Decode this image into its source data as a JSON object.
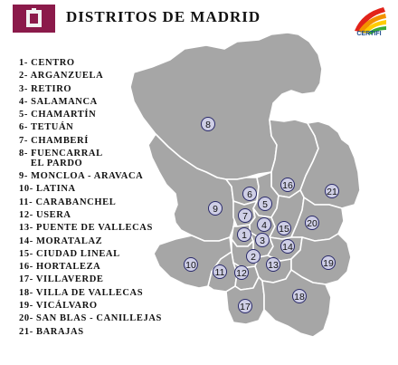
{
  "title": "DISTRITOS DE MADRID",
  "certifi_label": "CERTIFI",
  "legend": [
    "1- CENTRO",
    "2- ARGANZUELA",
    "3- RETIRO",
    "4- SALAMANCA",
    "5- CHAMARTÍN",
    "6- TETUÁN",
    "7- CHAMBERÍ",
    "8- FUENCARRAL\n    EL PARDO",
    "9- MONCLOA - ARAVACA",
    "10- LATINA",
    "11- CARABANCHEL",
    "12- USERA",
    "13- PUENTE DE VALLECAS",
    "14- MORATALAZ",
    "15- CIUDAD LINEAL",
    "16- HORTALEZA",
    "17- VILLAVERDE",
    "18- VILLA DE VALLECAS",
    "19- VICÁLVARO",
    "20- SAN BLAS - CANILLEJAS",
    "21- BARAJAS"
  ],
  "district_numbers": [
    "1",
    "2",
    "3",
    "4",
    "5",
    "6",
    "7",
    "8",
    "9",
    "10",
    "11",
    "12",
    "13",
    "14",
    "15",
    "16",
    "17",
    "18",
    "19",
    "20",
    "21"
  ],
  "colors": {
    "district_fill": "#a6a6a6",
    "district_border": "#ffffff",
    "badge_fill": "#cfcfe6",
    "badge_stroke": "#2a2a6a",
    "header_block": "#8b1a4a"
  }
}
